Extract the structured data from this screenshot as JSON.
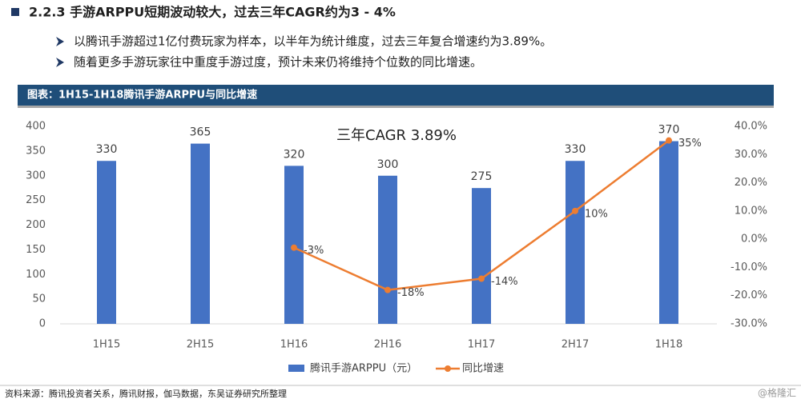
{
  "header": {
    "title": "2.2.3 手游ARPPU短期波动较大，过去三年CAGR约为3 - 4%",
    "bullets": [
      "以腾讯手游超过1亿付费玩家为样本，以半年为统计维度，过去三年复合增速约为3.89%。",
      "随着更多手游玩家往中重度手游过度，预计未来仍将维持个位数的同比增速。"
    ],
    "banner": "图表：1H15-1H18腾讯手游ARPPU与同比增速"
  },
  "chart_data": {
    "type": "bar",
    "annotation": "三年CAGR 3.89%",
    "categories": [
      "1H15",
      "2H15",
      "1H16",
      "2H16",
      "1H17",
      "2H17",
      "1H18"
    ],
    "series": [
      {
        "name": "腾讯手游ARPPU（元）",
        "type": "bar",
        "color": "#4472c4",
        "values": [
          330,
          365,
          320,
          300,
          275,
          330,
          370
        ]
      },
      {
        "name": "同比增速",
        "type": "line",
        "axis": "y2",
        "color": "#ed7d31",
        "values": [
          null,
          null,
          -3,
          -18,
          -14,
          10,
          35
        ],
        "value_labels": [
          null,
          null,
          "-3%",
          "-18%",
          "-14%",
          "10%",
          "35%"
        ]
      }
    ],
    "ylim": [
      0,
      400
    ],
    "yticks": [
      0,
      50,
      100,
      150,
      200,
      250,
      300,
      350,
      400
    ],
    "y2lim": [
      -30,
      40
    ],
    "y2ticks": [
      {
        "value": -30,
        "label": "-30.0%"
      },
      {
        "value": -20,
        "label": "-20.0%"
      },
      {
        "value": -10,
        "label": "-10.0%"
      },
      {
        "value": 0,
        "label": "0.0%"
      },
      {
        "value": 10,
        "label": "10.0%"
      },
      {
        "value": 20,
        "label": "20.0%"
      },
      {
        "value": 30,
        "label": "30.0%"
      },
      {
        "value": 40,
        "label": "40.0%"
      }
    ],
    "grid": false,
    "legend": "bottom"
  },
  "footer": {
    "source": "资料来源：腾讯投资者关系，腾讯财报，伽马数据，东吴证券研究所整理",
    "watermark": "@格隆汇"
  }
}
